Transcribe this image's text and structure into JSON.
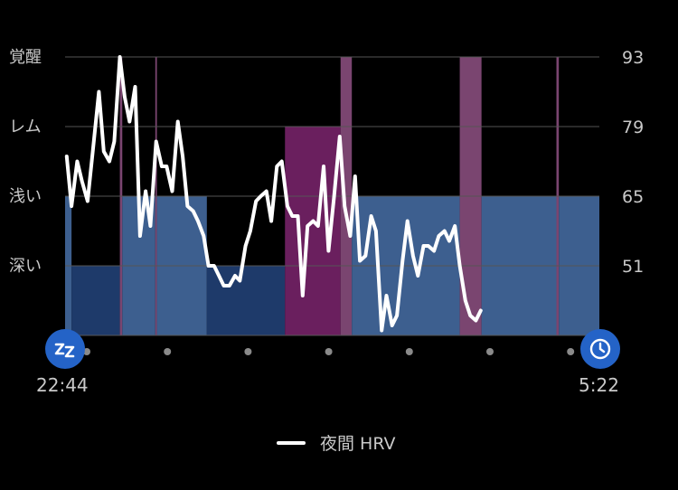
{
  "chart_data": {
    "type": "line",
    "title": "",
    "stage_labels": [
      "覚醒",
      "レム",
      "浅い",
      "深い"
    ],
    "ylim": [
      37,
      93
    ],
    "y_ticks": [
      93,
      79,
      65,
      51
    ],
    "time_start": "22:44",
    "time_end": "5:22",
    "time_range_hours": [
      0,
      6.633
    ],
    "legend": {
      "label": "夜間 HRV",
      "position": "bottom-center"
    },
    "colors": {
      "deep": "#1e3a6a",
      "light": "#3d5f8f",
      "rem": "#6a1f5e",
      "awake": "#7a4570",
      "line": "#ffffff",
      "icon": "#2463c7"
    },
    "stages": [
      {
        "stage": "light",
        "start": 0.0,
        "end": 0.08
      },
      {
        "stage": "deep",
        "start": 0.08,
        "end": 0.68
      },
      {
        "stage": "awake",
        "start": 0.68,
        "end": 0.71
      },
      {
        "stage": "light",
        "start": 0.71,
        "end": 1.12
      },
      {
        "stage": "awake",
        "start": 1.12,
        "end": 1.14
      },
      {
        "stage": "light",
        "start": 1.14,
        "end": 1.76
      },
      {
        "stage": "deep",
        "start": 1.76,
        "end": 2.73
      },
      {
        "stage": "rem",
        "start": 2.73,
        "end": 3.42
      },
      {
        "stage": "awake",
        "start": 3.42,
        "end": 3.56
      },
      {
        "stage": "light",
        "start": 3.56,
        "end": 4.9
      },
      {
        "stage": "awake",
        "start": 4.9,
        "end": 5.17
      },
      {
        "stage": "light",
        "start": 5.17,
        "end": 6.1
      },
      {
        "stage": "awake",
        "start": 6.1,
        "end": 6.13
      },
      {
        "stage": "light",
        "start": 6.13,
        "end": 6.633
      }
    ],
    "series": [
      {
        "name": "夜間 HRV",
        "points": [
          [
            0.02,
            73.0
          ],
          [
            0.08,
            63.0
          ],
          [
            0.15,
            72.0
          ],
          [
            0.21,
            68.0
          ],
          [
            0.28,
            64.0
          ],
          [
            0.35,
            75.0
          ],
          [
            0.42,
            86.0
          ],
          [
            0.48,
            74.0
          ],
          [
            0.55,
            72.0
          ],
          [
            0.61,
            76.0
          ],
          [
            0.68,
            93.0
          ],
          [
            0.74,
            85.0
          ],
          [
            0.8,
            80.0
          ],
          [
            0.87,
            87.0
          ],
          [
            0.93,
            57.0
          ],
          [
            1.0,
            66.0
          ],
          [
            1.06,
            59.0
          ],
          [
            1.13,
            76.0
          ],
          [
            1.2,
            71.0
          ],
          [
            1.26,
            71.0
          ],
          [
            1.33,
            66.0
          ],
          [
            1.4,
            80.0
          ],
          [
            1.46,
            73.0
          ],
          [
            1.52,
            63.0
          ],
          [
            1.59,
            62.0
          ],
          [
            1.65,
            60.0
          ],
          [
            1.72,
            57.0
          ],
          [
            1.78,
            51.0
          ],
          [
            1.85,
            51.0
          ],
          [
            1.91,
            49.0
          ],
          [
            1.97,
            47.0
          ],
          [
            2.04,
            47.0
          ],
          [
            2.11,
            49.0
          ],
          [
            2.17,
            48.0
          ],
          [
            2.24,
            55.0
          ],
          [
            2.3,
            58.0
          ],
          [
            2.37,
            64.0
          ],
          [
            2.43,
            65.0
          ],
          [
            2.5,
            66.0
          ],
          [
            2.56,
            60.0
          ],
          [
            2.63,
            71.0
          ],
          [
            2.69,
            72.0
          ],
          [
            2.76,
            63.0
          ],
          [
            2.82,
            61.0
          ],
          [
            2.89,
            61.0
          ],
          [
            2.95,
            45.0
          ],
          [
            3.01,
            59.0
          ],
          [
            3.08,
            60.0
          ],
          [
            3.14,
            59.0
          ],
          [
            3.21,
            71.0
          ],
          [
            3.27,
            54.0
          ],
          [
            3.34,
            65.0
          ],
          [
            3.41,
            77.0
          ],
          [
            3.47,
            63.0
          ],
          [
            3.54,
            57.0
          ],
          [
            3.6,
            69.0
          ],
          [
            3.66,
            52.0
          ],
          [
            3.73,
            53.0
          ],
          [
            3.8,
            61.0
          ],
          [
            3.86,
            58.0
          ],
          [
            3.93,
            38.0
          ],
          [
            3.99,
            45.0
          ],
          [
            4.06,
            39.0
          ],
          [
            4.12,
            41.0
          ],
          [
            4.19,
            52.0
          ],
          [
            4.25,
            60.0
          ],
          [
            4.32,
            53.0
          ],
          [
            4.38,
            49.0
          ],
          [
            4.45,
            55.0
          ],
          [
            4.51,
            55.0
          ],
          [
            4.58,
            54.0
          ],
          [
            4.64,
            57.0
          ],
          [
            4.71,
            58.0
          ],
          [
            4.77,
            56.0
          ],
          [
            4.84,
            59.0
          ],
          [
            4.9,
            51.0
          ],
          [
            4.97,
            44.0
          ],
          [
            5.03,
            41.0
          ],
          [
            5.1,
            40.0
          ],
          [
            5.16,
            42.0
          ]
        ]
      }
    ],
    "grid": true
  }
}
